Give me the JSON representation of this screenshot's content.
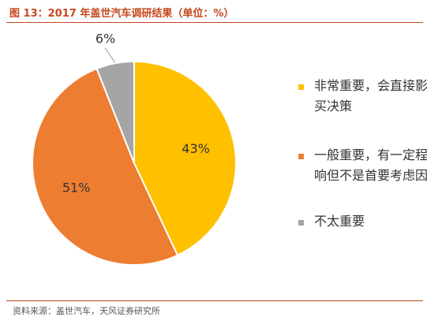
{
  "title": "图 13：2017 年盖世汽车调研结果（单位：%）",
  "source": "资料来源：盖世汽车，天风证券研究所",
  "colors": {
    "accent": "#c5471e",
    "text": "#333333"
  },
  "chart_data": {
    "type": "pie",
    "start_angle": "12 o'clock",
    "direction": "clockwise",
    "legend_position": "right",
    "slices": [
      {
        "label": "非常重要，会直接影买决策",
        "line1": "非常重要，会直接影",
        "line2": "买决策",
        "value": 43,
        "value_label": "43%",
        "color": "#ffc000"
      },
      {
        "label": "一般重要，有一定程响但不是首要考虑因",
        "line1": "一般重要，有一定程",
        "line2": "响但不是首要考虑因",
        "value": 51,
        "value_label": "51%",
        "color": "#ed7d31"
      },
      {
        "label": "不太重要",
        "line1": "不太重要",
        "line2": "",
        "value": 6,
        "value_label": "6%",
        "color": "#a5a5a5"
      }
    ]
  }
}
